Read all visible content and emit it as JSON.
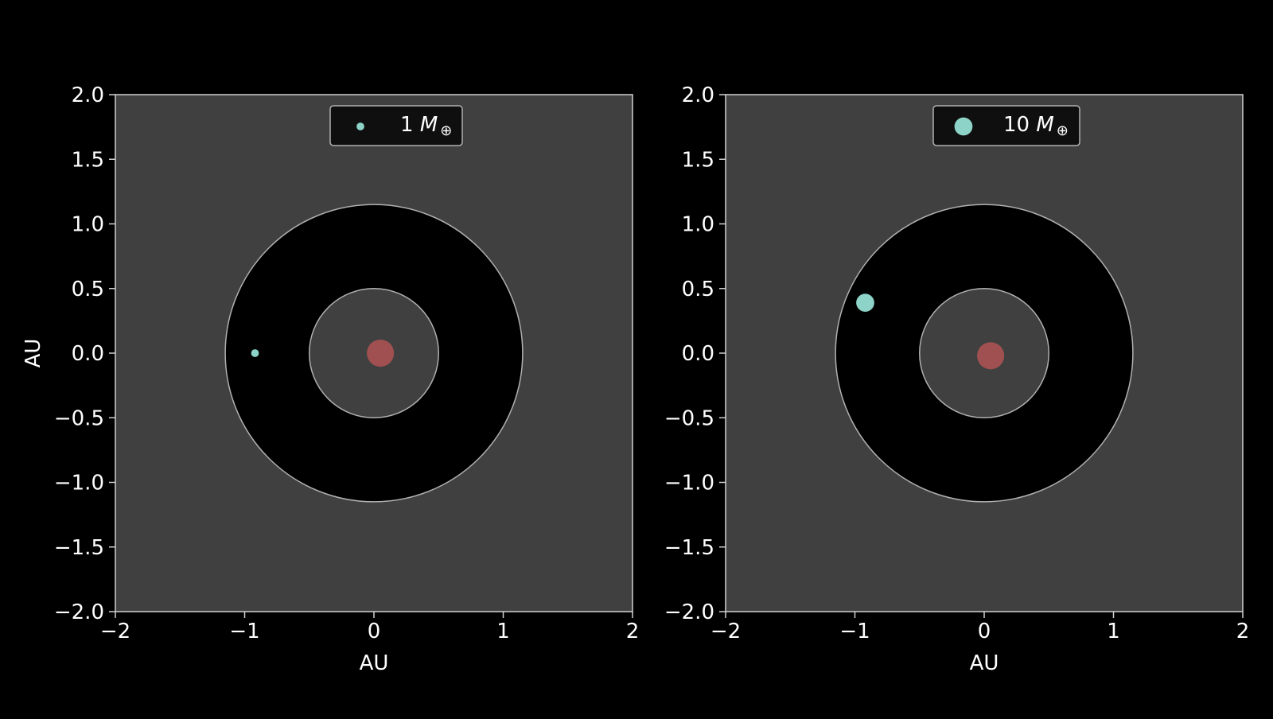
{
  "figure": {
    "background": "#000000"
  },
  "colors": {
    "axes_face": "#404040",
    "zone_fill": "#000000",
    "zone_edge": "#b0b0b0",
    "spine": "#d0d0d0",
    "text": "#ffffff",
    "planet": "#8dd3c7",
    "star": "#a05050",
    "legend_bg": "#0f0f0f",
    "legend_edge": "#b0b0b0"
  },
  "chart_data": [
    {
      "type": "scatter",
      "xlabel": "AU",
      "ylabel": "AU",
      "xlim": [
        -2,
        2
      ],
      "ylim": [
        -2,
        2
      ],
      "x_ticks": [
        -2,
        -1,
        0,
        1,
        2
      ],
      "y_ticks": [
        -2.0,
        -1.5,
        -1.0,
        -0.5,
        0.0,
        0.5,
        1.0,
        1.5,
        2.0
      ],
      "x_tick_labels": [
        "−2",
        "−1",
        "0",
        "1",
        "2"
      ],
      "y_tick_labels": [
        "−2.0",
        "−1.5",
        "−1.0",
        "−0.5",
        "0.0",
        "0.5",
        "1.0",
        "1.5",
        "2.0"
      ],
      "grid": false,
      "legend_position": "top-center",
      "legend": {
        "number": "1",
        "symbol": "M",
        "subscript": "⊕"
      },
      "zone": {
        "outer_radius": 1.15,
        "inner_radius": 0.5
      },
      "star": {
        "x": 0.05,
        "y": 0.0,
        "radius": 0.105
      },
      "planet": {
        "x": -0.92,
        "y": 0.0,
        "radius": 0.03,
        "mass_earth": 1
      }
    },
    {
      "type": "scatter",
      "xlabel": "AU",
      "ylabel": "",
      "xlim": [
        -2,
        2
      ],
      "ylim": [
        -2,
        2
      ],
      "x_ticks": [
        -2,
        -1,
        0,
        1,
        2
      ],
      "y_ticks": [
        -2.0,
        -1.5,
        -1.0,
        -0.5,
        0.0,
        0.5,
        1.0,
        1.5,
        2.0
      ],
      "x_tick_labels": [
        "−2",
        "−1",
        "0",
        "1",
        "2"
      ],
      "y_tick_labels": [
        "−2.0",
        "−1.5",
        "−1.0",
        "−0.5",
        "0.0",
        "0.5",
        "1.0",
        "1.5",
        "2.0"
      ],
      "grid": false,
      "legend_position": "top-center",
      "legend": {
        "number": "10",
        "symbol": "M",
        "subscript": "⊕"
      },
      "zone": {
        "outer_radius": 1.15,
        "inner_radius": 0.5
      },
      "star": {
        "x": 0.05,
        "y": -0.02,
        "radius": 0.105
      },
      "planet": {
        "x": -0.92,
        "y": 0.39,
        "radius": 0.07,
        "mass_earth": 10
      }
    }
  ]
}
